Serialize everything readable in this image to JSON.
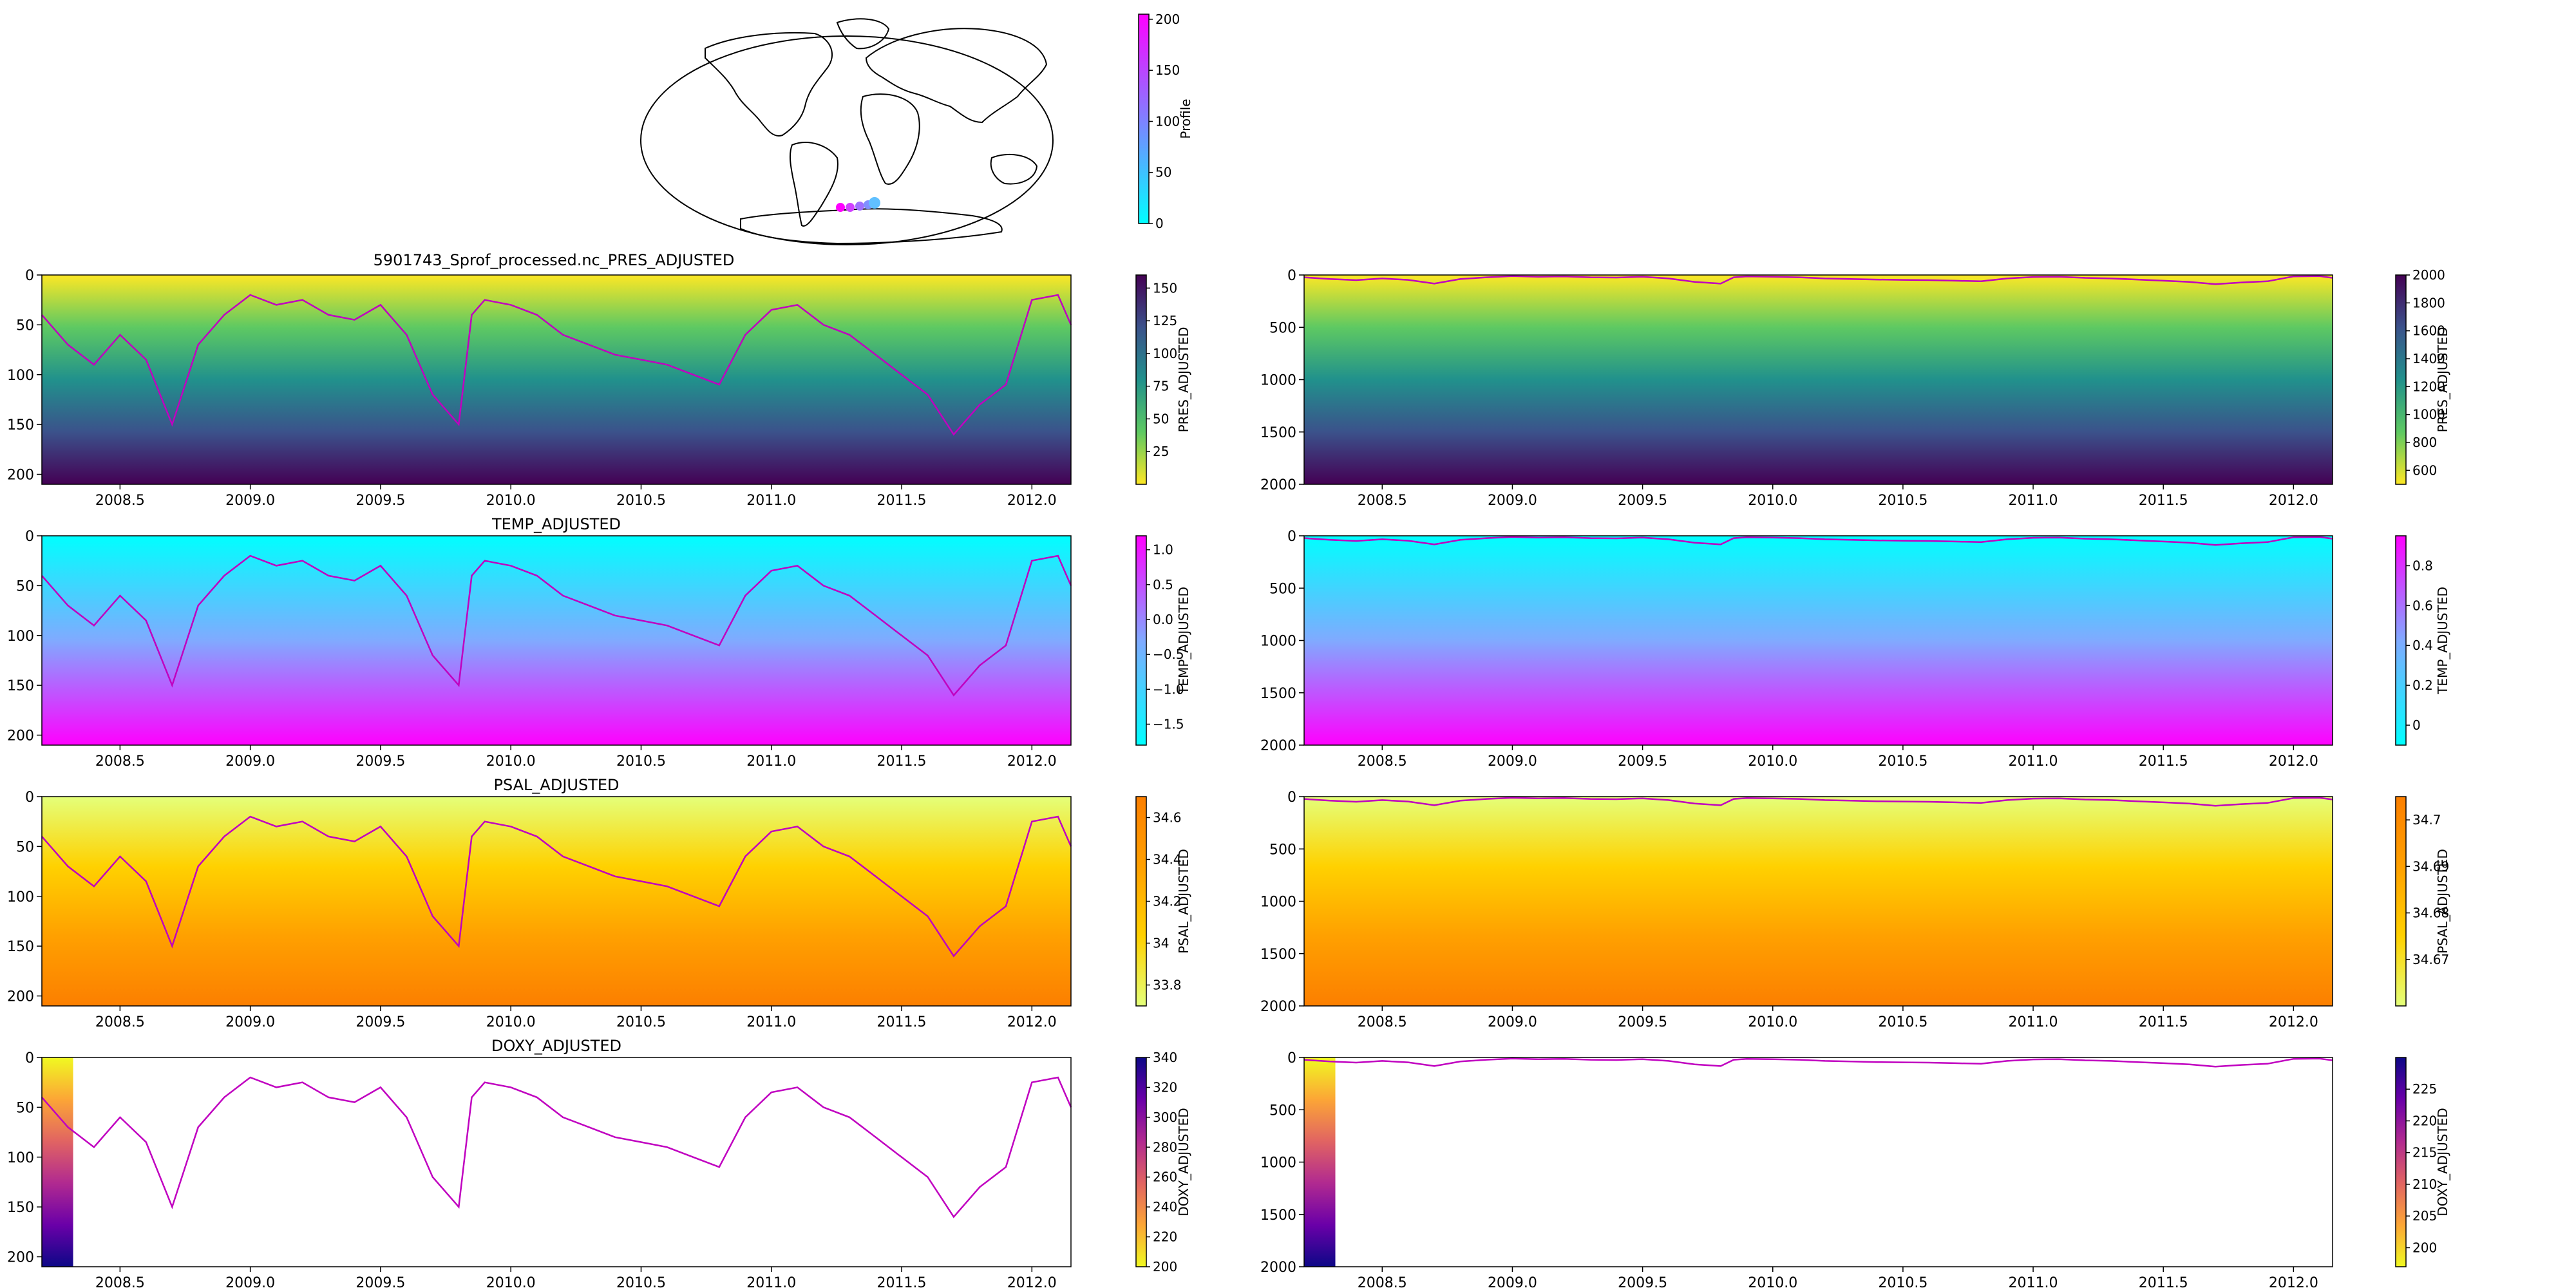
{
  "figure": {
    "title": "5901743_Sprof_processed.nc_PRES_ADJUSTED"
  },
  "map": {
    "colorbar_label": "Profile",
    "colorbar_ticks": [
      0,
      50,
      100,
      150,
      200
    ],
    "track_colors": [
      "#ff00ff",
      "#8080ff",
      "#00ffff"
    ]
  },
  "chart_data": [
    {
      "type": "heatmap",
      "id": "pres_shallow",
      "title": "",
      "xlabel": "",
      "ylabel": "",
      "colorbar_label": "PRES_ADJUSTED",
      "colormap": "viridis_r",
      "xlim": [
        2008.2,
        2012.15
      ],
      "ylim": [
        210,
        0
      ],
      "xticks": [
        2008.5,
        2009.0,
        2009.5,
        2010.0,
        2010.5,
        2011.0,
        2011.5,
        2012.0
      ],
      "yticks": [
        0,
        50,
        100,
        150,
        200
      ],
      "colorbar_range": [
        0,
        160
      ],
      "colorbar_ticks": [
        25,
        50,
        75,
        100,
        125,
        150
      ],
      "line_color": "#c000c0"
    },
    {
      "type": "heatmap",
      "id": "pres_deep",
      "title": "",
      "colorbar_label": "PRES_ADJUSTED",
      "colormap": "viridis_r",
      "xlim": [
        2008.2,
        2012.15
      ],
      "ylim": [
        2000,
        0
      ],
      "xticks": [
        2008.5,
        2009.0,
        2009.5,
        2010.0,
        2010.5,
        2011.0,
        2011.5,
        2012.0
      ],
      "yticks": [
        0,
        500,
        1000,
        1500,
        2000
      ],
      "colorbar_range": [
        500,
        2000
      ],
      "colorbar_ticks": [
        600,
        800,
        1000,
        1200,
        1400,
        1600,
        1800,
        2000
      ],
      "line_color": "#c000c0"
    },
    {
      "type": "heatmap",
      "id": "temp_shallow",
      "title": "TEMP_ADJUSTED",
      "colorbar_label": "TEMP_ADJUSTED",
      "colormap": "cool",
      "xlim": [
        2008.2,
        2012.15
      ],
      "ylim": [
        210,
        0
      ],
      "xticks": [
        2008.5,
        2009.0,
        2009.5,
        2010.0,
        2010.5,
        2011.0,
        2011.5,
        2012.0
      ],
      "yticks": [
        0,
        50,
        100,
        150,
        200
      ],
      "colorbar_range": [
        -1.8,
        1.2
      ],
      "colorbar_ticks": [
        -1.5,
        -1.0,
        -0.5,
        0.0,
        0.5,
        1.0
      ],
      "colorbar_tick_labels": [
        "−1.5",
        "−1.0",
        "−0.5",
        "0.0",
        "0.5",
        "1.0"
      ],
      "line_color": "#c000c0"
    },
    {
      "type": "heatmap",
      "id": "temp_deep",
      "title": "",
      "colorbar_label": "TEMP_ADJUSTED",
      "colormap": "cool",
      "xlim": [
        2008.2,
        2012.15
      ],
      "ylim": [
        2000,
        0
      ],
      "xticks": [
        2008.5,
        2009.0,
        2009.5,
        2010.0,
        2010.5,
        2011.0,
        2011.5,
        2012.0
      ],
      "yticks": [
        0,
        500,
        1000,
        1500,
        2000
      ],
      "colorbar_range": [
        -0.1,
        0.95
      ],
      "colorbar_ticks": [
        0.0,
        0.2,
        0.4,
        0.6,
        0.8
      ],
      "line_color": "#c000c0"
    },
    {
      "type": "heatmap",
      "id": "psal_shallow",
      "title": "PSAL_ADJUSTED",
      "colorbar_label": "PSAL_ADJUSTED",
      "colormap": "Wistia",
      "xlim": [
        2008.2,
        2012.15
      ],
      "ylim": [
        210,
        0
      ],
      "xticks": [
        2008.5,
        2009.0,
        2009.5,
        2010.0,
        2010.5,
        2011.0,
        2011.5,
        2012.0
      ],
      "yticks": [
        0,
        50,
        100,
        150,
        200
      ],
      "colorbar_range": [
        33.7,
        34.7
      ],
      "colorbar_ticks": [
        33.8,
        34.0,
        34.2,
        34.4,
        34.6
      ],
      "line_color": "#c000c0"
    },
    {
      "type": "heatmap",
      "id": "psal_deep",
      "title": "",
      "colorbar_label": "PSAL_ADJUSTED",
      "colormap": "Wistia",
      "xlim": [
        2008.2,
        2012.15
      ],
      "ylim": [
        2000,
        0
      ],
      "xticks": [
        2008.5,
        2009.0,
        2009.5,
        2010.0,
        2010.5,
        2011.0,
        2011.5,
        2012.0
      ],
      "yticks": [
        0,
        500,
        1000,
        1500,
        2000
      ],
      "colorbar_range": [
        34.66,
        34.705
      ],
      "colorbar_ticks": [
        34.67,
        34.68,
        34.69,
        34.7
      ],
      "line_color": "#c000c0"
    },
    {
      "type": "heatmap",
      "id": "doxy_shallow",
      "title": "DOXY_ADJUSTED",
      "colorbar_label": "DOXY_ADJUSTED",
      "colormap": "plasma_r",
      "xlim": [
        2008.2,
        2012.15
      ],
      "ylim": [
        210,
        0
      ],
      "xticks": [
        2008.5,
        2009.0,
        2009.5,
        2010.0,
        2010.5,
        2011.0,
        2011.5,
        2012.0
      ],
      "yticks": [
        0,
        50,
        100,
        150,
        200
      ],
      "colorbar_range": [
        200,
        340
      ],
      "colorbar_ticks": [
        200,
        220,
        240,
        260,
        280,
        300,
        320,
        340
      ],
      "line_color": "#c000c0",
      "data_extent_x": [
        2008.2,
        2008.32
      ]
    },
    {
      "type": "heatmap",
      "id": "doxy_deep",
      "title": "",
      "colorbar_label": "DOXY_ADJUSTED",
      "colormap": "plasma_r",
      "xlim": [
        2008.2,
        2012.15
      ],
      "ylim": [
        2000,
        0
      ],
      "xticks": [
        2008.5,
        2009.0,
        2009.5,
        2010.0,
        2010.5,
        2011.0,
        2011.5,
        2012.0
      ],
      "yticks": [
        0,
        500,
        1000,
        1500,
        2000
      ],
      "colorbar_range": [
        197,
        230
      ],
      "colorbar_ticks": [
        200,
        205,
        210,
        215,
        220,
        225
      ],
      "line_color": "#c000c0",
      "data_extent_x": [
        2008.2,
        2008.32
      ]
    }
  ],
  "mixed_layer_depth": {
    "x": [
      2008.2,
      2008.3,
      2008.4,
      2008.5,
      2008.6,
      2008.7,
      2008.8,
      2008.9,
      2009.0,
      2009.1,
      2009.2,
      2009.3,
      2009.4,
      2009.5,
      2009.6,
      2009.7,
      2009.8,
      2009.85,
      2009.9,
      2010.0,
      2010.1,
      2010.2,
      2010.3,
      2010.4,
      2010.5,
      2010.6,
      2010.7,
      2010.8,
      2010.9,
      2011.0,
      2011.1,
      2011.2,
      2011.3,
      2011.4,
      2011.5,
      2011.6,
      2011.7,
      2011.8,
      2011.9,
      2012.0,
      2012.1,
      2012.15
    ],
    "y": [
      40,
      70,
      90,
      60,
      85,
      150,
      70,
      40,
      20,
      30,
      25,
      40,
      45,
      30,
      60,
      120,
      150,
      40,
      25,
      30,
      40,
      60,
      70,
      80,
      85,
      90,
      100,
      110,
      60,
      35,
      30,
      50,
      60,
      80,
      100,
      120,
      160,
      130,
      110,
      25,
      20,
      50
    ]
  }
}
